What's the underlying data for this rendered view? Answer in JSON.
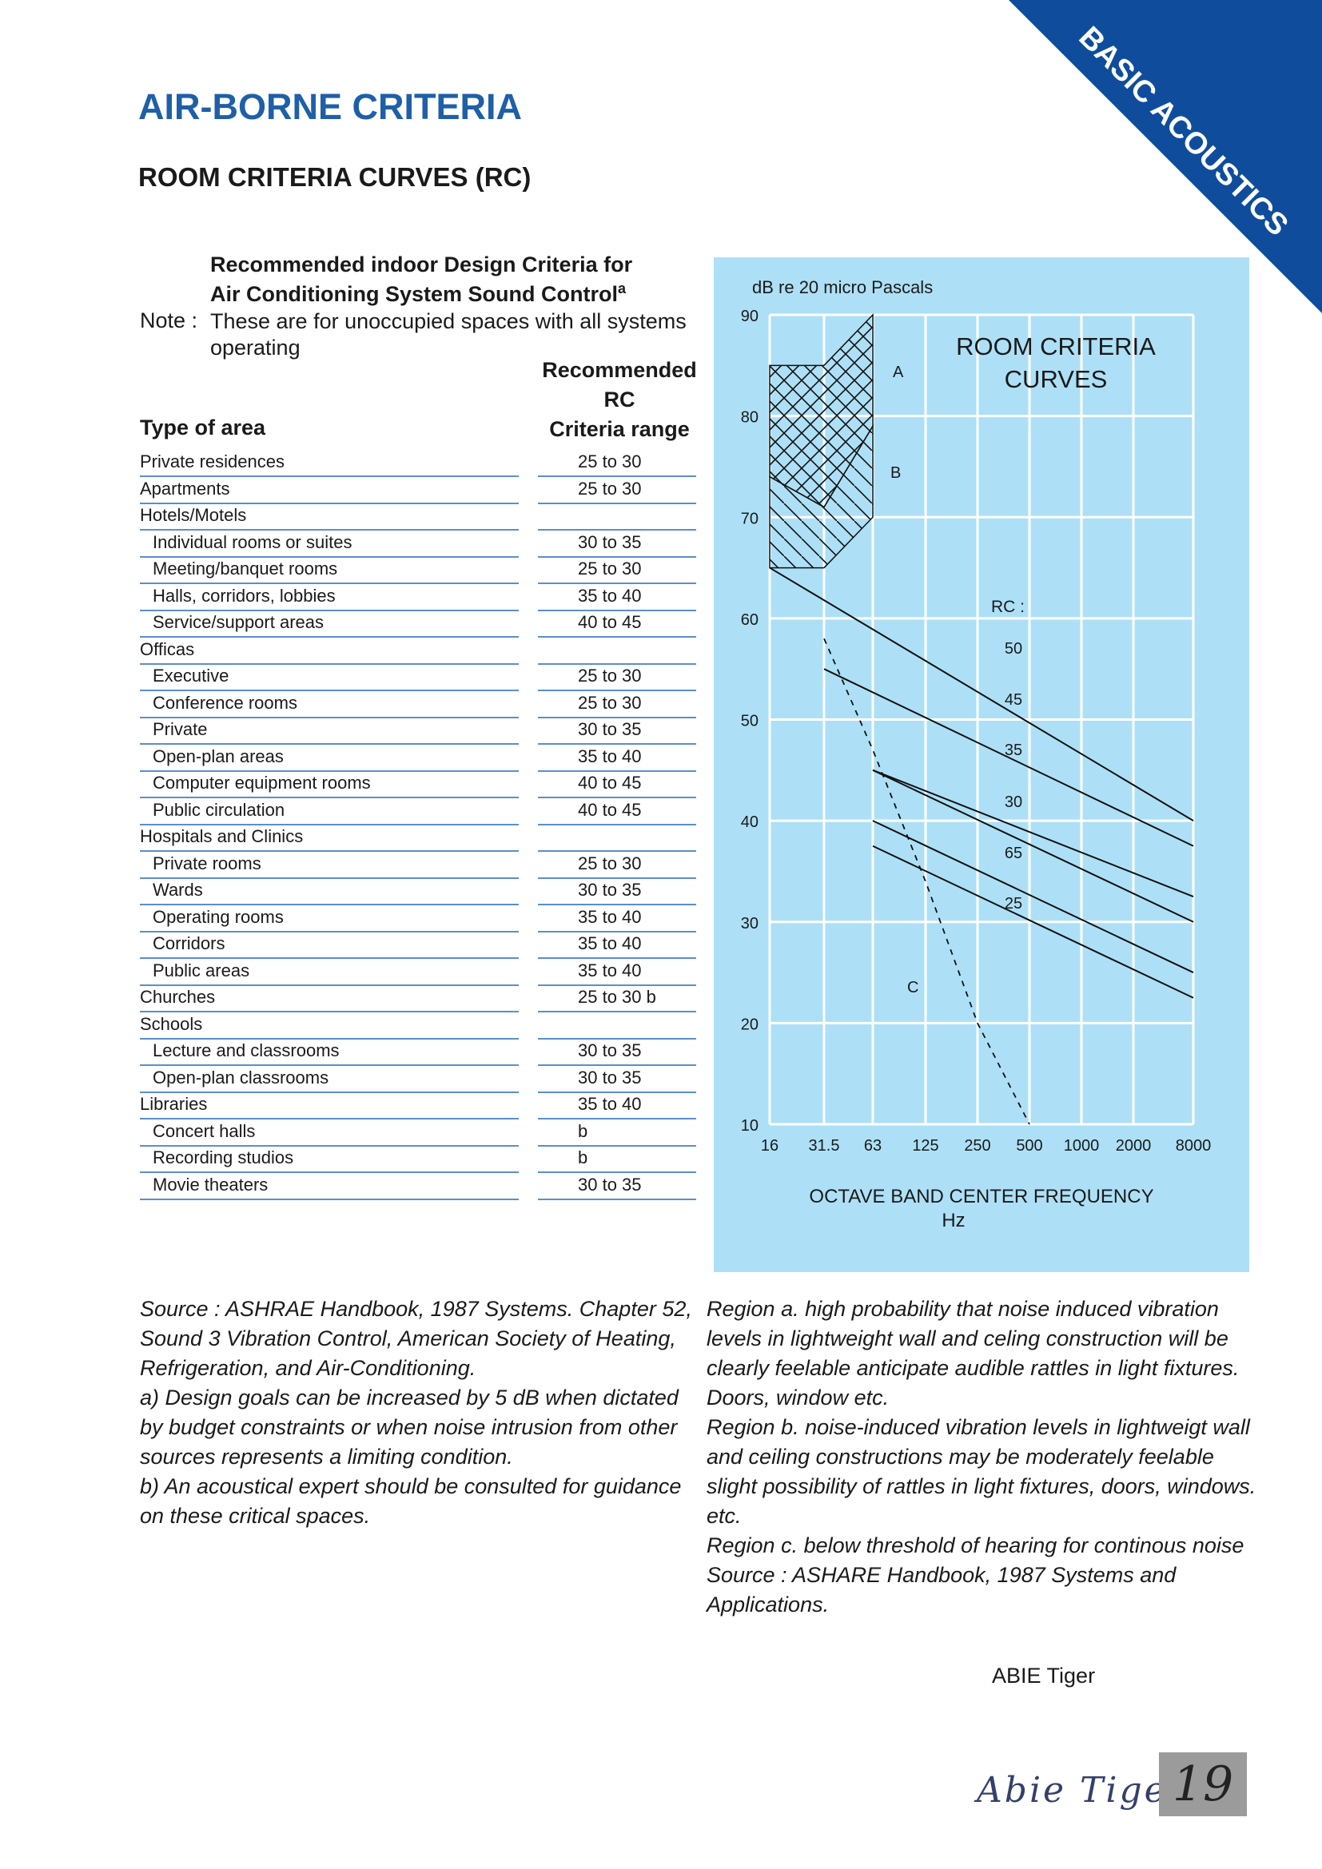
{
  "corner_banner": {
    "label": "BASIC ACOUSTICS",
    "color": "#0f4d9c"
  },
  "page_title": "AIR-BORNE CRITERIA",
  "section_title": "ROOM CRITERIA CURVES (RC)",
  "table": {
    "heading_line1": "Recommended indoor Design Criteria for",
    "heading_line2": "Air Conditioning System Sound Control",
    "heading_superscript": "a",
    "note_label": "Note :",
    "note_text": "These are for unoccupied spaces with all systems operating",
    "col_type": "Type of area",
    "col_rc_line1": "Recommended",
    "col_rc_line2": "RC",
    "col_rc_line3": "Criteria range",
    "rows": [
      {
        "type": "Private residences",
        "rc": "25 to 30",
        "indent": false
      },
      {
        "type": "Apartments",
        "rc": "25 to 30",
        "indent": false
      },
      {
        "type": "Hotels/Motels",
        "rc": "",
        "indent": false
      },
      {
        "type": "Individual rooms or suites",
        "rc": "30 to 35",
        "indent": true
      },
      {
        "type": "Meeting/banquet rooms",
        "rc": "25 to 30",
        "indent": true
      },
      {
        "type": "Halls, corridors, lobbies",
        "rc": "35 to 40",
        "indent": true
      },
      {
        "type": "Service/support areas",
        "rc": "40 to 45",
        "indent": true
      },
      {
        "type": "Officas",
        "rc": "",
        "indent": false
      },
      {
        "type": "Executive",
        "rc": "25 to 30",
        "indent": true
      },
      {
        "type": "Conference rooms",
        "rc": "25 to 30",
        "indent": true
      },
      {
        "type": "Private",
        "rc": "30 to 35",
        "indent": true
      },
      {
        "type": "Open-plan areas",
        "rc": "35 to 40",
        "indent": true
      },
      {
        "type": "Computer equipment rooms",
        "rc": "40 to 45",
        "indent": true
      },
      {
        "type": "Public circulation",
        "rc": "40 to 45",
        "indent": true
      },
      {
        "type": "Hospitals and Clinics",
        "rc": "",
        "indent": false
      },
      {
        "type": "Private rooms",
        "rc": "25 to 30",
        "indent": true
      },
      {
        "type": "Wards",
        "rc": "30 to 35",
        "indent": true
      },
      {
        "type": "Operating rooms",
        "rc": "35 to 40",
        "indent": true
      },
      {
        "type": "Corridors",
        "rc": "35 to 40",
        "indent": true
      },
      {
        "type": "Public areas",
        "rc": "35 to 40",
        "indent": true
      },
      {
        "type": "Churches",
        "rc": "25 to 30 b",
        "indent": false
      },
      {
        "type": "Schools",
        "rc": "",
        "indent": false
      },
      {
        "type": "Lecture and classrooms",
        "rc": "30 to 35",
        "indent": true
      },
      {
        "type": "Open-plan classrooms",
        "rc": "30 to 35",
        "indent": true
      },
      {
        "type": "Libraries",
        "rc": "35 to 40",
        "indent": false
      },
      {
        "type": "Concert halls",
        "rc": "b",
        "indent": true
      },
      {
        "type": "Recording studios",
        "rc": "b",
        "indent": true
      },
      {
        "type": "Movie theaters",
        "rc": "30 to 35",
        "indent": true
      }
    ]
  },
  "chart_data": {
    "type": "line",
    "title_line1": "ROOM CRITERIA",
    "title_line2": "CURVES",
    "ylabel": "dB re 20 micro Pascals",
    "xlabel_line1": "OCTAVE BAND CENTER FREQUENCY",
    "xlabel_line2": "Hz",
    "background": "#ade0f6",
    "x_ticks": [
      "16",
      "31.5",
      "63",
      "125",
      "250",
      "500",
      "1000",
      "2000",
      "8000"
    ],
    "ylim": [
      10,
      90
    ],
    "y_ticks": [
      90,
      80,
      70,
      60,
      50,
      40,
      30,
      20,
      10
    ],
    "grid": true,
    "rc_label": "RC :",
    "region_labels": [
      "A",
      "B",
      "C"
    ],
    "series": [
      {
        "label": "50",
        "x": [
          16,
          8000
        ],
        "y": [
          65,
          40
        ]
      },
      {
        "label": "45",
        "x": [
          31.5,
          8000
        ],
        "y": [
          55,
          37.5
        ]
      },
      {
        "label": "35",
        "x": [
          63,
          8000
        ],
        "y": [
          45,
          32.5
        ]
      },
      {
        "label": "30",
        "x": [
          63,
          8000
        ],
        "y": [
          45,
          30
        ]
      },
      {
        "label": "65",
        "x": [
          63,
          8000
        ],
        "y": [
          40,
          25
        ]
      },
      {
        "label": "25",
        "x": [
          63,
          8000
        ],
        "y": [
          37.5,
          22.5
        ]
      }
    ],
    "threshold_curve": {
      "label": "C",
      "x": [
        31.5,
        63,
        125,
        250,
        500
      ],
      "y": [
        58,
        47,
        34,
        20,
        10
      ],
      "style": "dashed"
    },
    "region_a": {
      "label": "A",
      "x": [
        16,
        31.5,
        63
      ],
      "y": [
        85,
        85,
        90
      ]
    },
    "region_b": {
      "label": "B",
      "x": [
        16,
        31.5,
        63
      ],
      "y": [
        65,
        65,
        70
      ]
    }
  },
  "footnotes_left": [
    "Source : ASHRAE Handbook, 1987 Systems. Chapter 52, Sound 3 Vibration Control, American Society of Heating, Refrigeration, and Air-Conditioning.",
    "a) Design goals can be increased by 5 dB when dictated by budget constraints or when noise intrusion from other sources represents a limiting condition.",
    "b) An acoustical expert should be consulted for guidance on these critical spaces."
  ],
  "footnotes_right": [
    "Region a. high probability that noise induced vibration levels in lightweight wall and celing construction will be clearly feelable anticipate audible rattles in light fixtures. Doors, window etc.",
    "Region b. noise-induced vibration levels in lightweigt wall and ceiling constructions may be moderately feelable slight possibility of rattles in light fixtures, doors, windows. etc.",
    "Region c. below threshold of hearing for continous noise",
    "Source : ASHARE Handbook, 1987 Systems and Applications."
  ],
  "author": "ABIE Tiger",
  "signature": "Abie Tiger",
  "page_number": "19"
}
